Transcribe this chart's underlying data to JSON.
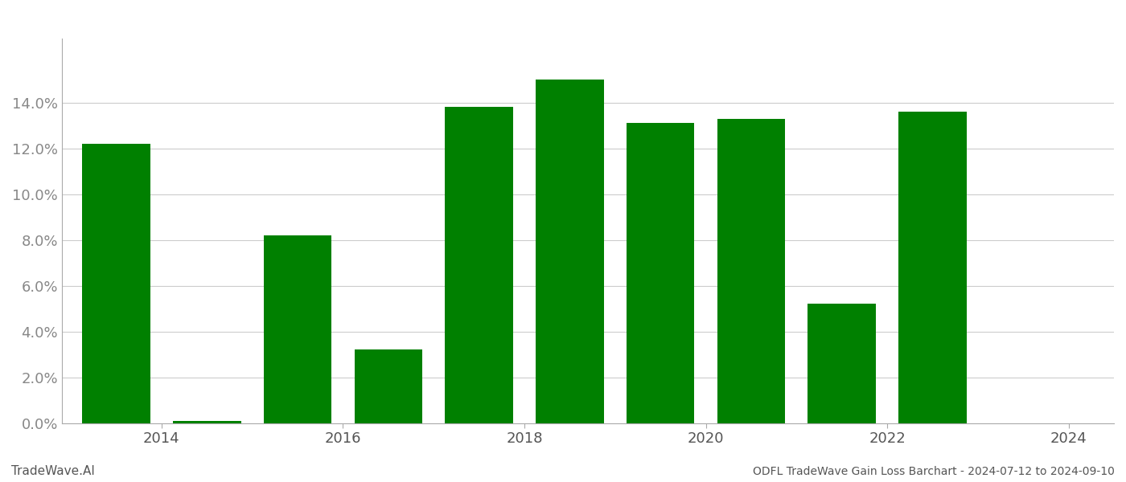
{
  "years": [
    2014,
    2015,
    2016,
    2017,
    2018,
    2019,
    2020,
    2021,
    2022,
    2023,
    2024
  ],
  "values": [
    0.122,
    0.001,
    0.082,
    0.032,
    0.138,
    0.15,
    0.131,
    0.133,
    0.052,
    0.136,
    0.0
  ],
  "bar_color": "#008000",
  "background_color": "#ffffff",
  "grid_color": "#cccccc",
  "ylabel_color": "#888888",
  "xlabel_color": "#555555",
  "title_text": "ODFL TradeWave Gain Loss Barchart - 2024-07-12 to 2024-09-10",
  "watermark_text": "TradeWave.AI",
  "ylim_max": 0.168,
  "ytick_values": [
    0.0,
    0.02,
    0.04,
    0.06,
    0.08,
    0.1,
    0.12,
    0.14
  ],
  "xtick_positions": [
    2014.5,
    2016.5,
    2018.5,
    2020.5,
    2022.5,
    2024.5
  ],
  "xtick_labels": [
    "2014",
    "2016",
    "2018",
    "2020",
    "2022",
    "2024"
  ],
  "bar_width": 0.75,
  "title_fontsize": 10,
  "watermark_fontsize": 11,
  "tick_fontsize": 13
}
